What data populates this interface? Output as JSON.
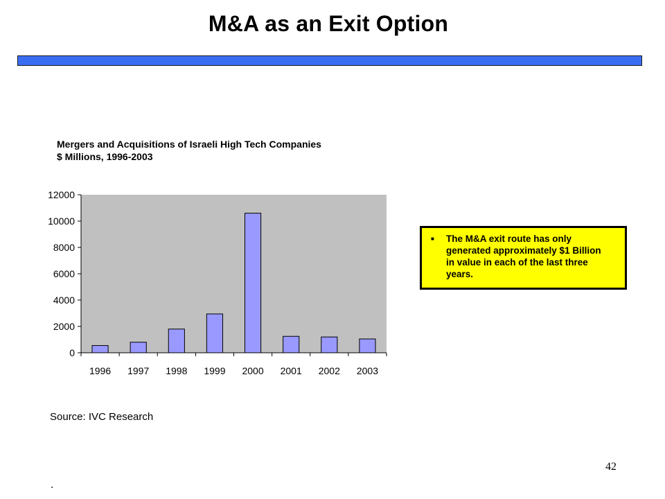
{
  "slide": {
    "title": "M&A as an Exit Option",
    "accent_color": "#3a6ef2",
    "page_number": "42",
    "footer_mark": "."
  },
  "chart_heading": {
    "line1": "Mergers and Acquisitions of Israeli High Tech Companies",
    "line2": "$ Millions, 1996-2003"
  },
  "source": "Source: IVC Research",
  "callout": {
    "bullet_icon": "square-bullet",
    "text": "The M&A exit route has only generated approximately $1 Billion in value in each of the last three years.",
    "background": "#ffff00"
  },
  "chart_data": {
    "type": "bar",
    "categories": [
      "1996",
      "1997",
      "1998",
      "1999",
      "2000",
      "2001",
      "2002",
      "2003"
    ],
    "values": [
      550,
      800,
      1800,
      2950,
      10600,
      1250,
      1200,
      1050
    ],
    "ylim": [
      0,
      12000
    ],
    "yticks": [
      0,
      2000,
      4000,
      6000,
      8000,
      10000,
      12000
    ],
    "xlabel": "",
    "ylabel": "",
    "grid": false,
    "legend": "none",
    "bar_color": "#9999ff",
    "plot_background": "#c0c0c0"
  }
}
